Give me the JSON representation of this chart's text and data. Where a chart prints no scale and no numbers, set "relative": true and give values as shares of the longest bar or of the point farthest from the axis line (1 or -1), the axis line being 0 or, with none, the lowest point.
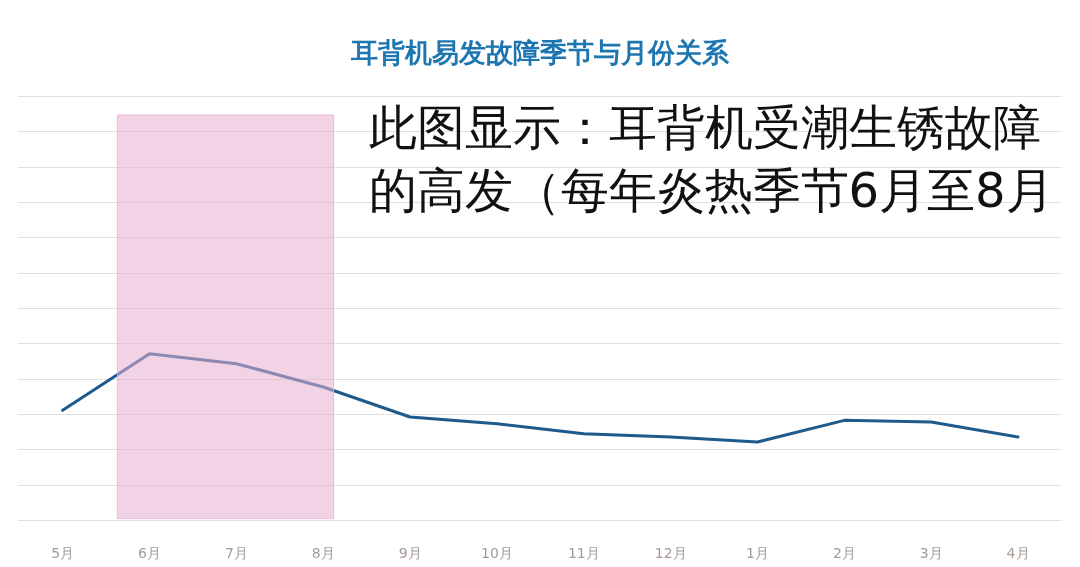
{
  "chart_data": {
    "type": "line",
    "title": "耳背机易发故障季节与月份关系",
    "categories": [
      "5月",
      "6月",
      "7月",
      "8月",
      "9月",
      "10月",
      "11月",
      "12月",
      "1月",
      "2月",
      "3月",
      "4月"
    ],
    "series": [
      {
        "color": "#1f5a8c",
        "values": [
          0.66,
          1,
          0.94,
          0.8,
          0.62,
          0.58,
          0.52,
          0.5,
          0.47,
          0.6,
          0.59,
          0.5
        ]
      }
    ],
    "relative": true,
    "bands": [
      {
        "axis": "x",
        "from": "6月",
        "to": "8月",
        "color": "#f2d3e6"
      }
    ],
    "annotations": [
      "此图显示：耳背机受潮生锈故障的高发（每年炎热季节6月至8月"
    ],
    "grid": "y",
    "line_style": "solid"
  }
}
